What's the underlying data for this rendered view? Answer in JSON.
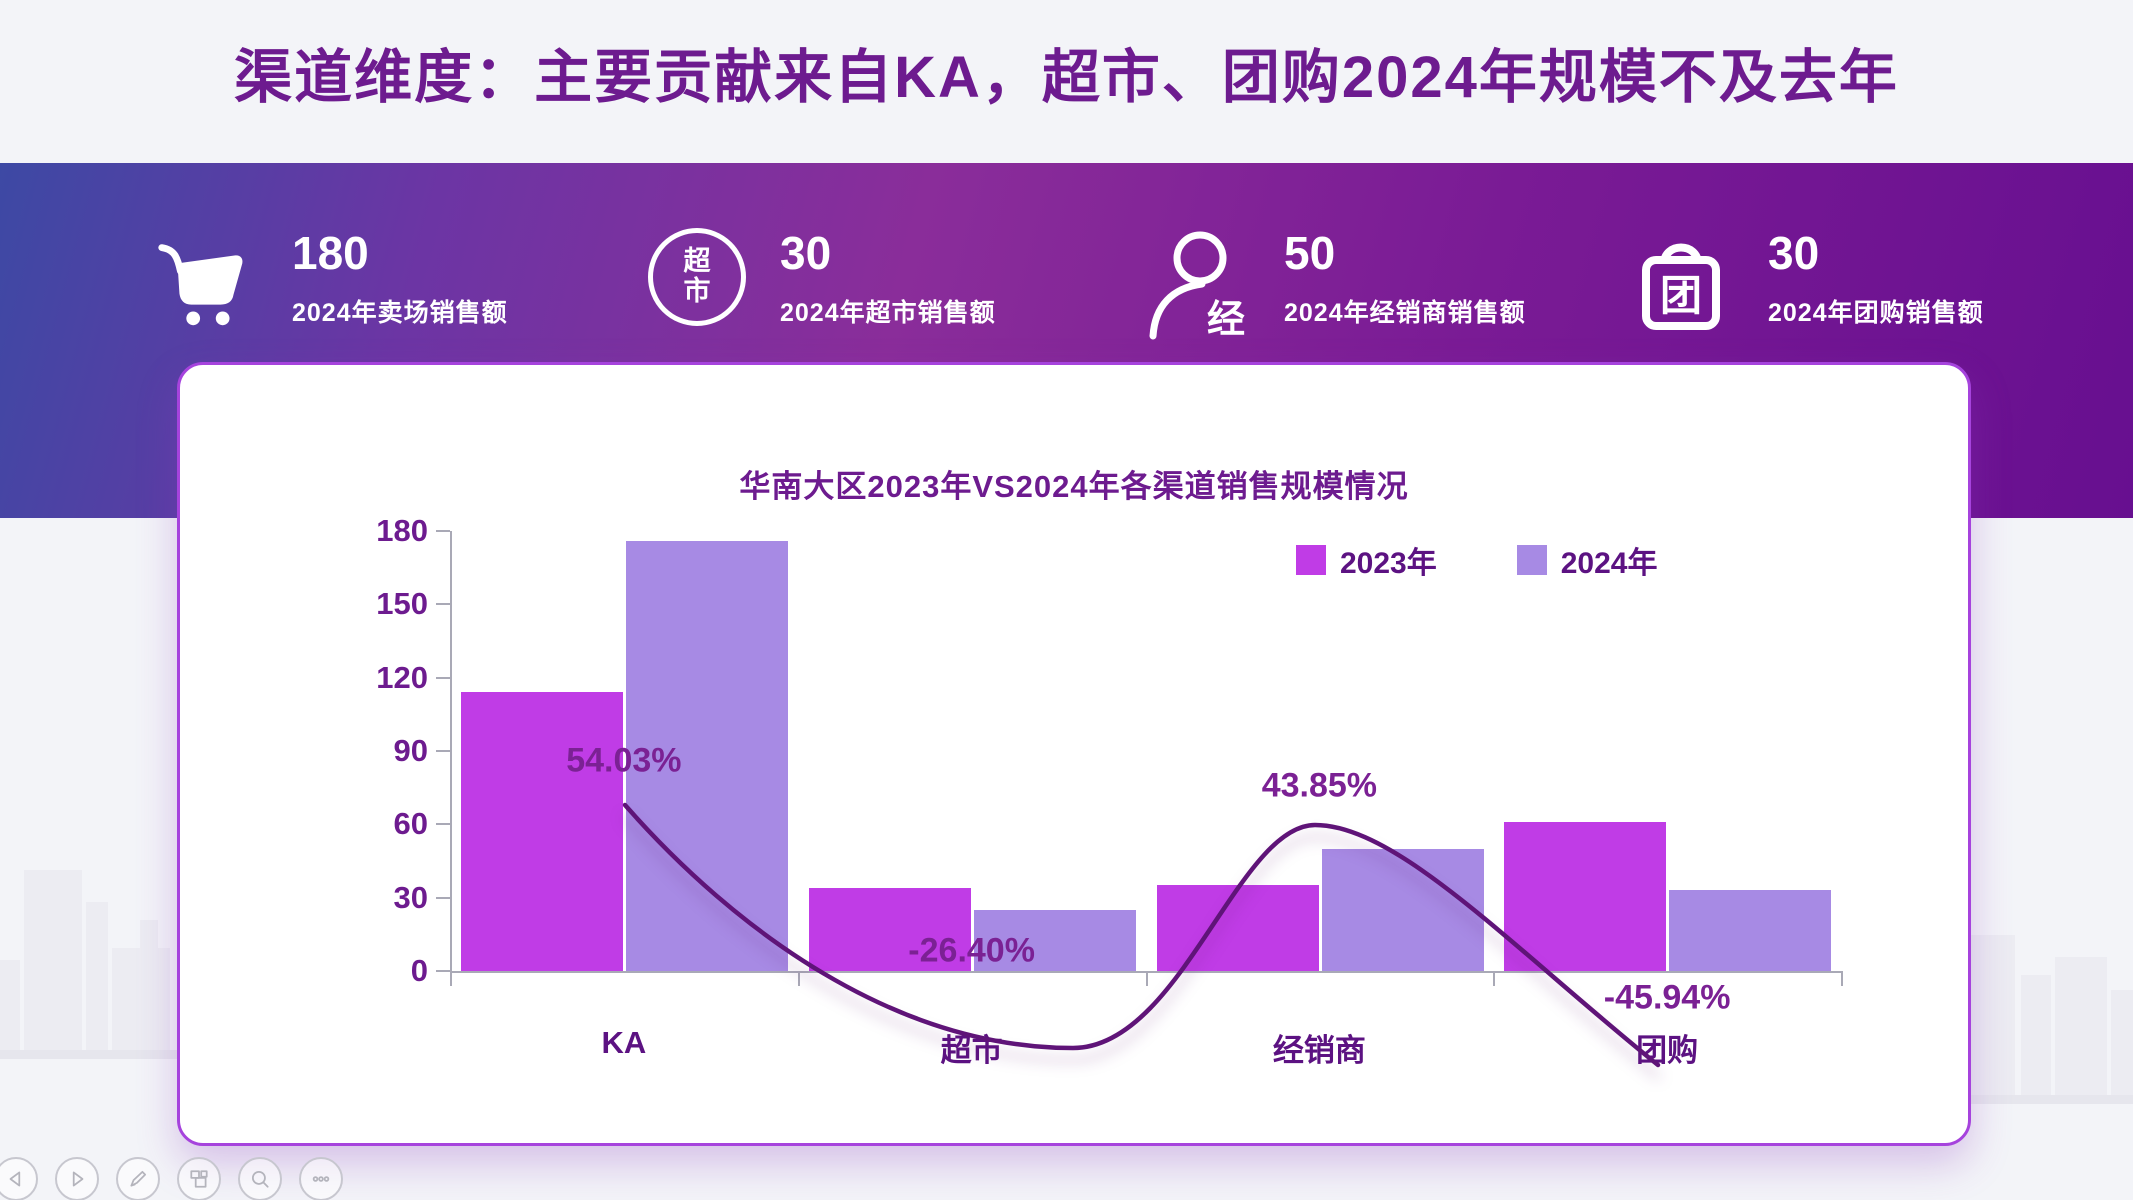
{
  "page": {
    "title": "渠道维度：主要贡献来自KA，超市、团购2024年规模不及去年"
  },
  "stats": [
    {
      "icon": "cart-icon",
      "value": "180",
      "label": "2024年卖场销售额"
    },
    {
      "icon": "supermarket-circle-icon",
      "icon_text": "超市",
      "value": "30",
      "label": "2024年超市销售额"
    },
    {
      "icon": "distributor-person-icon",
      "icon_text": "经",
      "value": "50",
      "label": "2024年经销商销售额"
    },
    {
      "icon": "groupbuy-bag-icon",
      "icon_text": "团",
      "value": "30",
      "label": "2024年团购销售额"
    }
  ],
  "chart_data": {
    "type": "bar",
    "title": "华南大区2023年VS2024年各渠道销售规模情况",
    "categories": [
      "KA",
      "超市",
      "经销商",
      "团购"
    ],
    "series": [
      {
        "name": "2023年",
        "color": "#c03ce6",
        "values": [
          114,
          34,
          35,
          61
        ]
      },
      {
        "name": "2024年",
        "color": "#a78ae4",
        "values": [
          176,
          25,
          50,
          33
        ]
      }
    ],
    "growth_line": {
      "color": "#5f1478",
      "labels": [
        "54.03%",
        "-26.40%",
        "43.85%",
        "-45.94%"
      ],
      "values_pct": [
        54.03,
        -26.4,
        43.85,
        -45.94
      ]
    },
    "yticks": [
      0,
      30,
      60,
      90,
      120,
      150,
      180
    ],
    "ylim": [
      0,
      180
    ],
    "grid": false,
    "legend_position": "top-right"
  },
  "toolbar": {
    "buttons": [
      {
        "name": "previous-slide"
      },
      {
        "name": "next-slide"
      },
      {
        "name": "pen-annotate"
      },
      {
        "name": "slide-panel"
      },
      {
        "name": "zoom-search"
      },
      {
        "name": "more-options"
      }
    ]
  },
  "colors": {
    "title_text": "#6d1b8f",
    "banner_gradient_left": "#3d49a4",
    "banner_gradient_right": "#670f90",
    "card_border": "#a643dd",
    "axis": "#a9a9b6"
  }
}
